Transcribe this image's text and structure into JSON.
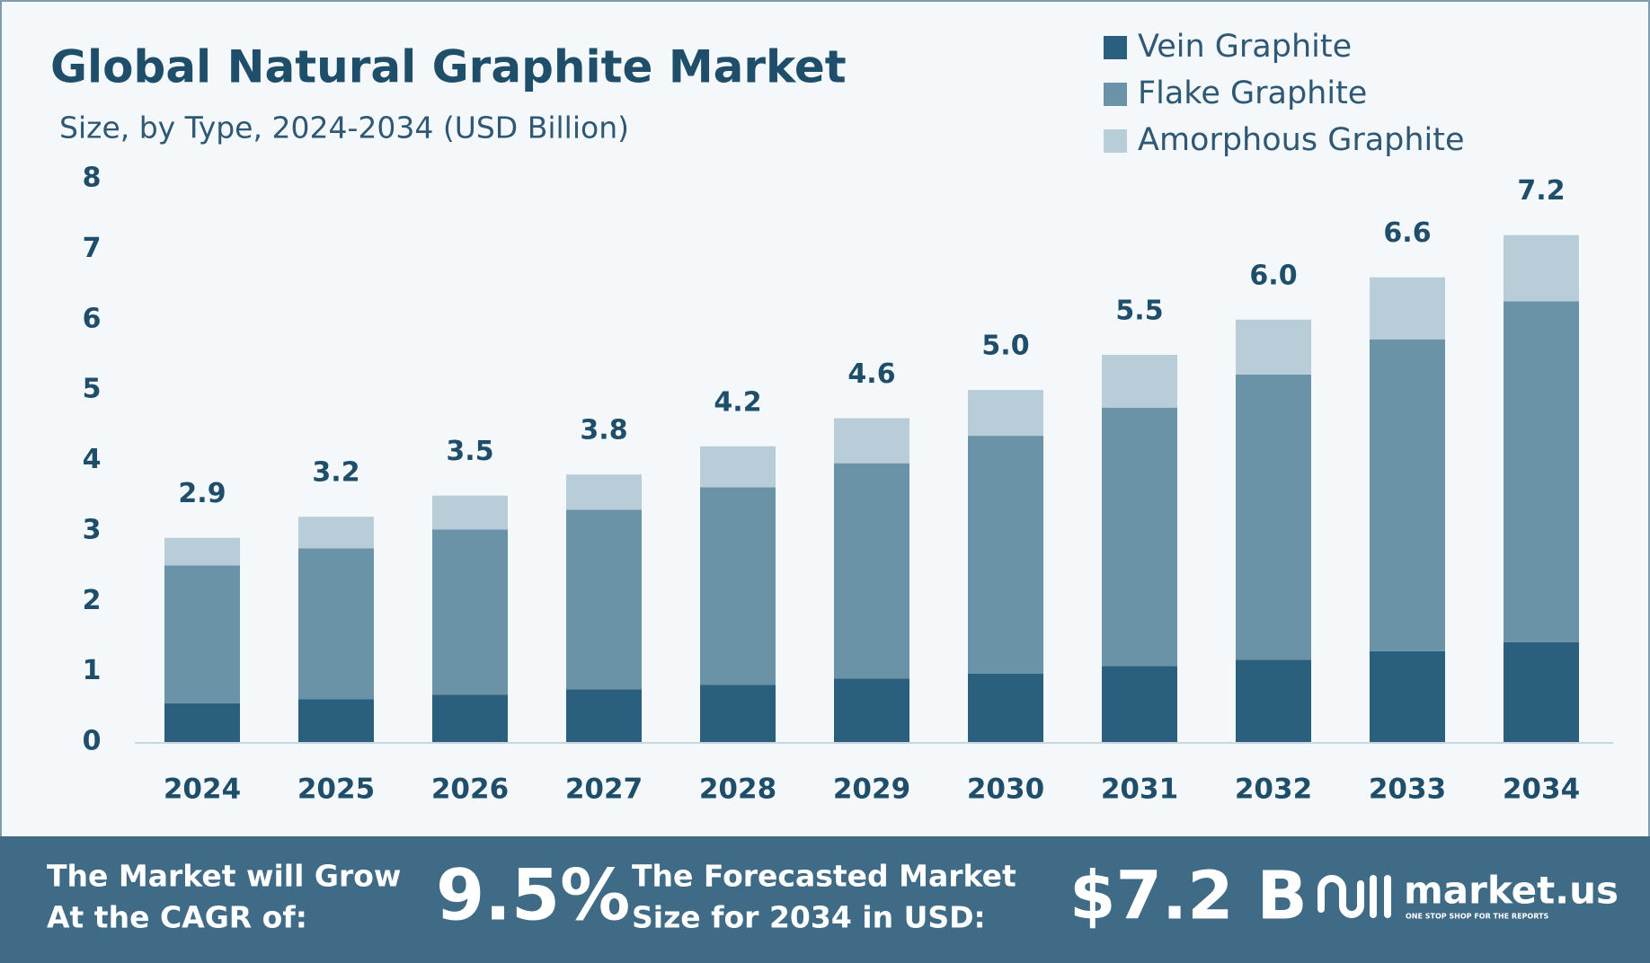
{
  "chart_data": {
    "type": "stacked-bar",
    "title": "Global Natural Graphite Market",
    "subtitle": "Size, by Type, 2024-2034 (USD Billion)",
    "categories": [
      "2024",
      "2025",
      "2026",
      "2027",
      "2028",
      "2029",
      "2030",
      "2031",
      "2032",
      "2033",
      "2034"
    ],
    "series": [
      {
        "name": "Vein Graphite",
        "color": "#2b5f7e",
        "values": [
          0.55,
          0.61,
          0.67,
          0.75,
          0.81,
          0.9,
          0.97,
          1.08,
          1.17,
          1.29,
          1.42
        ]
      },
      {
        "name": "Flake Graphite",
        "color": "#6a93a8",
        "values": [
          1.96,
          2.14,
          2.35,
          2.55,
          2.81,
          3.06,
          3.38,
          3.67,
          4.05,
          4.43,
          4.84
        ]
      },
      {
        "name": "Amorphous Graphite",
        "color": "#b9cdd8",
        "values": [
          0.39,
          0.45,
          0.48,
          0.5,
          0.58,
          0.64,
          0.65,
          0.75,
          0.78,
          0.88,
          0.94
        ]
      }
    ],
    "totals": [
      2.9,
      3.2,
      3.5,
      3.8,
      4.2,
      4.6,
      5,
      5.5,
      6,
      6.6,
      7.2
    ],
    "total_labels": [
      "2.9",
      "3.2",
      "3.5",
      "3.8",
      "4.2",
      "4.6",
      "5.0",
      "5.5",
      "6.0",
      "6.6",
      "7.2"
    ],
    "ylim": [
      0,
      8
    ],
    "yticks": [
      0,
      1,
      2,
      3,
      4,
      5,
      6,
      7,
      8
    ],
    "grid": false,
    "legend": "top-right"
  },
  "footer": {
    "cagr_text": [
      "The Market will Grow",
      "At the CAGR of:"
    ],
    "cagr_value": "9.5%",
    "forecast_text": [
      "The Forecasted Market",
      "Size for 2034 in USD:"
    ],
    "forecast_value": "$7.2 B",
    "brand": "market.us",
    "tagline": "ONE STOP SHOP FOR THE REPORTS"
  }
}
